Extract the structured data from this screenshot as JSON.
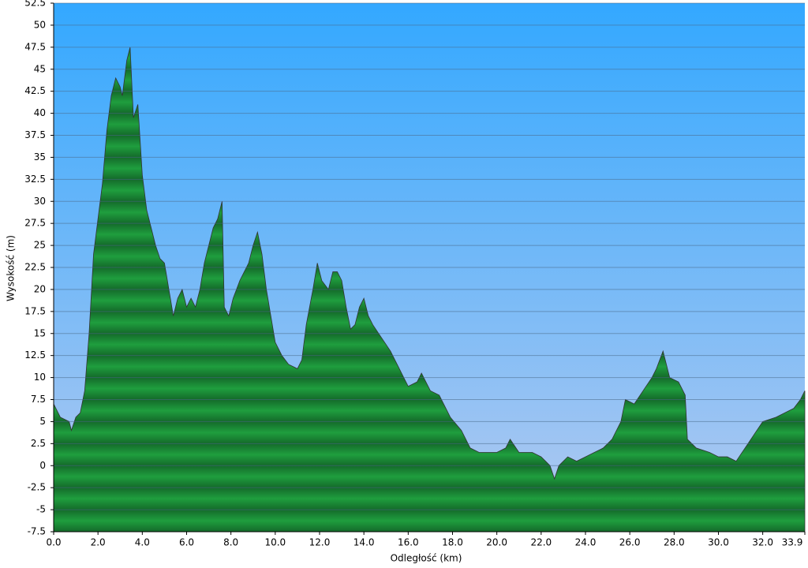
{
  "chart_data": {
    "type": "area",
    "x_label": "Odległość   (km)",
    "y_label": "Wysokość (m)",
    "x": [
      0,
      0.3,
      0.7,
      0.8,
      1.0,
      1.2,
      1.4,
      1.6,
      1.8,
      2.0,
      2.2,
      2.4,
      2.6,
      2.8,
      3.0,
      3.1,
      3.2,
      3.3,
      3.45,
      3.6,
      3.8,
      4.0,
      4.2,
      4.4,
      4.6,
      4.8,
      5.0,
      5.2,
      5.4,
      5.6,
      5.8,
      6.0,
      6.2,
      6.4,
      6.6,
      6.8,
      7.0,
      7.2,
      7.4,
      7.6,
      7.7,
      7.9,
      8.1,
      8.4,
      8.6,
      8.8,
      9.0,
      9.2,
      9.4,
      9.6,
      9.8,
      10.0,
      10.3,
      10.6,
      11.0,
      11.2,
      11.4,
      11.7,
      11.9,
      12.1,
      12.4,
      12.6,
      12.8,
      13.0,
      13.2,
      13.4,
      13.6,
      13.8,
      14.0,
      14.2,
      14.4,
      14.8,
      15.2,
      15.6,
      16.0,
      16.4,
      16.6,
      17.0,
      17.4,
      17.6,
      17.9,
      18.4,
      18.8,
      19.2,
      19.6,
      20.0,
      20.4,
      20.6,
      21.0,
      21.6,
      22.0,
      22.4,
      22.6,
      22.8,
      23.2,
      23.6,
      24.0,
      24.4,
      24.8,
      25.2,
      25.6,
      25.8,
      26.2,
      26.6,
      27.0,
      27.2,
      27.5,
      27.8,
      28.2,
      28.5,
      28.6,
      29.0,
      29.6,
      30.0,
      30.4,
      30.8,
      31.2,
      31.6,
      32.0,
      32.6,
      33.0,
      33.4,
      33.7,
      33.9
    ],
    "values": [
      7,
      5.5,
      5,
      4,
      5.5,
      6,
      8.5,
      15,
      24,
      28,
      32,
      38,
      42,
      44,
      43,
      42,
      44,
      46,
      47.5,
      39.5,
      41,
      33,
      29,
      27,
      25,
      23.5,
      23,
      20,
      17,
      19,
      20,
      18,
      19,
      18,
      20,
      23,
      25,
      27,
      28,
      30,
      18,
      17,
      19,
      21,
      22,
      23,
      25,
      26.5,
      24,
      20,
      17,
      14,
      12.5,
      11.5,
      11,
      12,
      16,
      20,
      23,
      21,
      20,
      22,
      22,
      21,
      18,
      15.5,
      16,
      18,
      19,
      17,
      16,
      14.5,
      13,
      11,
      9,
      9.5,
      10.5,
      8.5,
      8,
      7,
      5.5,
      4,
      2,
      1.5,
      1.5,
      1.5,
      2,
      3,
      1.5,
      1.5,
      1,
      0,
      -1.5,
      0,
      1,
      0.5,
      1,
      1.5,
      2,
      3,
      5,
      7.5,
      7,
      8.5,
      10,
      11,
      13,
      10,
      9.5,
      8,
      3,
      2,
      1.5,
      1,
      1,
      0.5,
      2,
      3.5,
      5,
      5.5,
      6,
      6.5,
      7.5,
      8.5
    ],
    "color": "#1f9e3e",
    "grid": true,
    "xlim": [
      0,
      33.9
    ],
    "ylim": [
      -7.5,
      52.5
    ],
    "xticks": [
      {
        "value": 0,
        "label": "0.0"
      },
      {
        "value": 2,
        "label": "2.0"
      },
      {
        "value": 4,
        "label": "4.0"
      },
      {
        "value": 6,
        "label": "6.0"
      },
      {
        "value": 8,
        "label": "8.0"
      },
      {
        "value": 10,
        "label": "10.0"
      },
      {
        "value": 12,
        "label": "12.0"
      },
      {
        "value": 14,
        "label": "14.0"
      },
      {
        "value": 16,
        "label": "16.0"
      },
      {
        "value": 18,
        "label": "18.0"
      },
      {
        "value": 20,
        "label": "20.0"
      },
      {
        "value": 22,
        "label": "22.0"
      },
      {
        "value": 24,
        "label": "24.0"
      },
      {
        "value": 26,
        "label": "26.0"
      },
      {
        "value": 28,
        "label": "28.0"
      },
      {
        "value": 30,
        "label": "30.0"
      },
      {
        "value": 32,
        "label": "32.0"
      },
      33.9
    ],
    "yticks": [
      -7.5,
      -5,
      -2.5,
      0,
      2.5,
      5,
      7.5,
      10,
      12.5,
      15,
      17.5,
      20,
      22.5,
      25,
      27.5,
      30,
      32.5,
      35,
      37.5,
      40,
      42.5,
      45,
      47.5,
      50,
      52.5
    ]
  }
}
